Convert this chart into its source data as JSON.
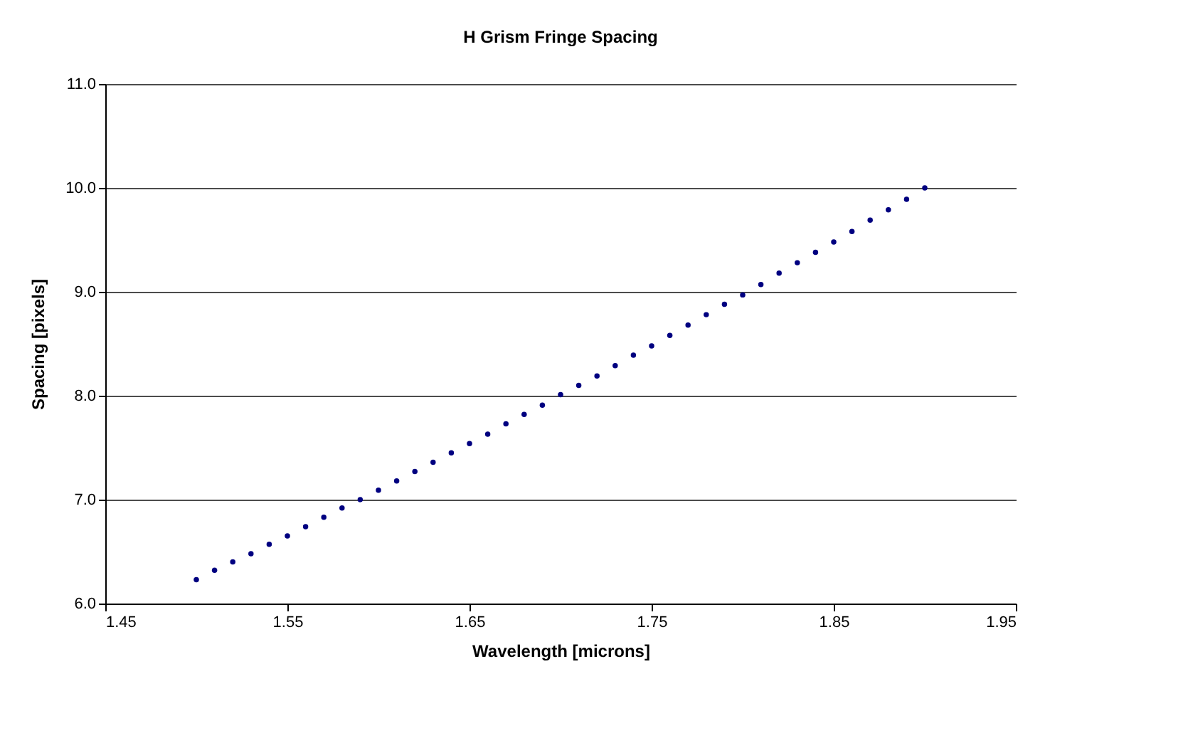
{
  "chart_data": {
    "type": "scatter",
    "title": "H Grism Fringe Spacing",
    "xlabel": "Wavelength [microns]",
    "ylabel": "Spacing [pixels]",
    "x": [
      1.5,
      1.51,
      1.52,
      1.53,
      1.54,
      1.55,
      1.56,
      1.57,
      1.58,
      1.59,
      1.6,
      1.61,
      1.62,
      1.63,
      1.64,
      1.65,
      1.66,
      1.67,
      1.68,
      1.69,
      1.7,
      1.71,
      1.72,
      1.73,
      1.74,
      1.75,
      1.76,
      1.77,
      1.78,
      1.79,
      1.8,
      1.81,
      1.82,
      1.83,
      1.84,
      1.85,
      1.86,
      1.87,
      1.88,
      1.89,
      1.9
    ],
    "series": [
      {
        "color": "#000080",
        "values": [
          6.23,
          6.32,
          6.4,
          6.48,
          6.57,
          6.65,
          6.74,
          6.83,
          6.92,
          7.0,
          7.09,
          7.18,
          7.27,
          7.36,
          7.45,
          7.54,
          7.63,
          7.73,
          7.82,
          7.91,
          8.01,
          8.1,
          8.19,
          8.29,
          8.39,
          8.48,
          8.58,
          8.68,
          8.78,
          8.88,
          8.97,
          9.07,
          9.18,
          9.28,
          9.38,
          9.48,
          9.58,
          9.69,
          9.79,
          9.89,
          10.0
        ]
      }
    ],
    "xlim": [
      1.45,
      1.95
    ],
    "xticks": [
      {
        "value": 1.45,
        "label": "1.45"
      },
      {
        "value": 1.55,
        "label": "1.55"
      },
      {
        "value": 1.65,
        "label": "1.65"
      },
      {
        "value": 1.75,
        "label": "1.75"
      },
      {
        "value": 1.85,
        "label": "1.85"
      },
      {
        "value": 1.95,
        "label": "1.95"
      }
    ],
    "ylim": [
      6,
      11
    ],
    "yticks": [
      {
        "value": 6,
        "label": "6.0"
      },
      {
        "value": 7,
        "label": "7.0"
      },
      {
        "value": 8,
        "label": "8.0"
      },
      {
        "value": 9,
        "label": "9.0"
      },
      {
        "value": 10,
        "label": "10.0"
      },
      {
        "value": 11,
        "label": "11.0"
      }
    ],
    "grid": "y",
    "marker": "circle"
  }
}
